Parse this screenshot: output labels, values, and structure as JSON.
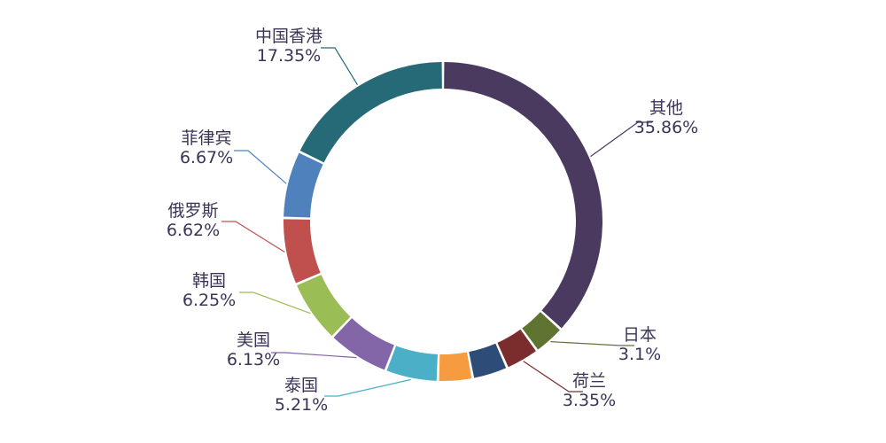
{
  "chart_data": {
    "type": "pie",
    "donut": true,
    "title": "",
    "slices": [
      {
        "label": "其他",
        "value": 35.86,
        "value_text": "35.86%",
        "color": "#4b3a60"
      },
      {
        "label": "日本",
        "value": 3.1,
        "value_text": "3.1%",
        "color": "#5f7431"
      },
      {
        "label": "荷兰",
        "value": 3.35,
        "value_text": "3.35%",
        "color": "#7b2c2c"
      },
      {
        "label": "",
        "value": 3.5,
        "value_text": "",
        "color": "#2e4c78"
      },
      {
        "label": "",
        "value": 3.43,
        "value_text": "",
        "color": "#f79b40"
      },
      {
        "label": "泰国",
        "value": 5.21,
        "value_text": "5.21%",
        "color": "#4bafc7"
      },
      {
        "label": "美国",
        "value": 6.13,
        "value_text": "6.13%",
        "color": "#8266a8"
      },
      {
        "label": "韩国",
        "value": 6.25,
        "value_text": "6.25%",
        "color": "#9bbd56"
      },
      {
        "label": "俄罗斯",
        "value": 6.62,
        "value_text": "6.62%",
        "color": "#c0504d"
      },
      {
        "label": "菲律宾",
        "value": 6.67,
        "value_text": "6.67%",
        "color": "#4f81bd"
      },
      {
        "label": "中国香港",
        "value": 17.35,
        "value_text": "17.35%",
        "color": "#266977"
      }
    ]
  }
}
